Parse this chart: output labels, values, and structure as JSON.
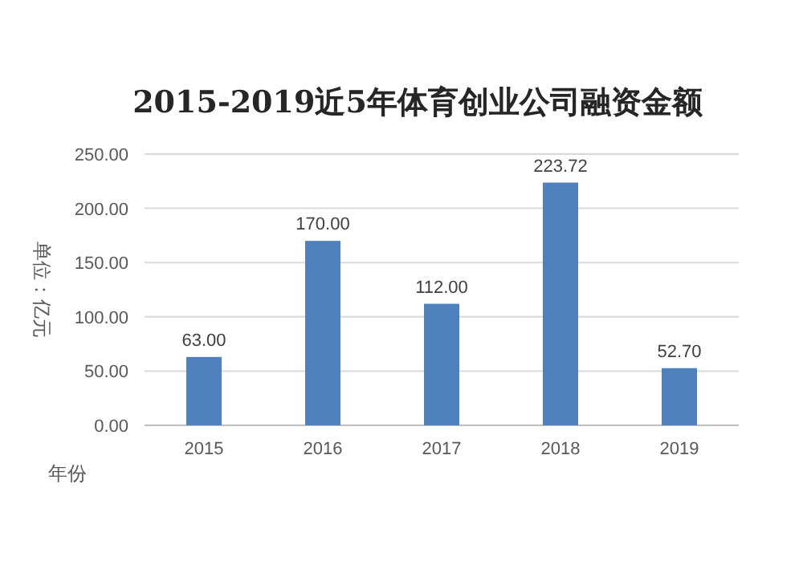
{
  "chart_data": {
    "type": "bar",
    "title": "2015-2019近5年体育创业公司融资金额",
    "xlabel": "年份",
    "ylabel": "单位：亿元",
    "categories": [
      "2015",
      "2016",
      "2017",
      "2018",
      "2019"
    ],
    "values": [
      63.0,
      170.0,
      112.0,
      223.72,
      52.7
    ],
    "value_labels": [
      "63.00",
      "170.00",
      "112.00",
      "223.72",
      "52.70"
    ],
    "color": "#4f81bd",
    "ylim": [
      0,
      250
    ],
    "yticks": [
      {
        "value": 0,
        "label": "0.00"
      },
      {
        "value": 50,
        "label": "50.00"
      },
      {
        "value": 100,
        "label": "100.00"
      },
      {
        "value": 150,
        "label": "150.00"
      },
      {
        "value": 200,
        "label": "200.00"
      },
      {
        "value": 250,
        "label": "250.00"
      }
    ],
    "grid": "y"
  }
}
